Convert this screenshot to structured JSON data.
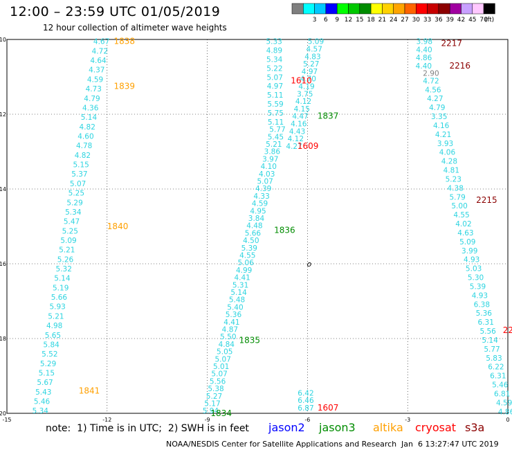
{
  "header": {
    "title": "12:00 – 23:59 UTC 01/05/2019",
    "subtitle": "12 hour collection of altimeter wave heights"
  },
  "colorbar": {
    "unit_label": "(ft)",
    "segments": [
      {
        "color": "#7f7f7f",
        "label": ""
      },
      {
        "color": "#00ffff",
        "label": "3"
      },
      {
        "color": "#00c8ff",
        "label": "6"
      },
      {
        "color": "#0000ff",
        "label": "9"
      },
      {
        "color": "#00ff00",
        "label": "12"
      },
      {
        "color": "#00c800",
        "label": "15"
      },
      {
        "color": "#008c00",
        "label": "18"
      },
      {
        "color": "#ffff00",
        "label": "21"
      },
      {
        "color": "#ffd200",
        "label": "24"
      },
      {
        "color": "#ffa500",
        "label": "27"
      },
      {
        "color": "#ff6400",
        "label": "30"
      },
      {
        "color": "#ff0000",
        "label": "33"
      },
      {
        "color": "#c80000",
        "label": "36"
      },
      {
        "color": "#8b0000",
        "label": "39"
      },
      {
        "color": "#a000a0",
        "label": "42"
      },
      {
        "color": "#c8a0ff",
        "label": "45"
      },
      {
        "color": "#ffc8ff",
        "label": "70"
      },
      {
        "color": "#000000",
        "label": ""
      }
    ]
  },
  "map": {
    "lon_range": [
      -15,
      0
    ],
    "lat_range": [
      -20,
      -10
    ],
    "x_ticks": [
      "-15",
      "-12",
      "-9",
      "-6",
      "-3",
      "0"
    ],
    "y_ticks": [
      "-10",
      "-12",
      "-14",
      "-16",
      "-18",
      "-20"
    ],
    "colors": {
      "cyan": "#2dd4e0",
      "green": "#008c00",
      "orange": "#ffa000",
      "red": "#ff0000",
      "darkred": "#8b0000",
      "gray": "#808080"
    },
    "track_labels": [
      {
        "text": "1838",
        "lon": -11.8,
        "lat": -10.05,
        "color": "orange"
      },
      {
        "text": "1839",
        "lon": -11.8,
        "lat": -11.25,
        "color": "orange"
      },
      {
        "text": "1840",
        "lon": -12.0,
        "lat": -15.0,
        "color": "orange"
      },
      {
        "text": "1841",
        "lon": -12.85,
        "lat": -19.4,
        "color": "orange"
      },
      {
        "text": "1610",
        "lon": -6.5,
        "lat": -11.1,
        "color": "red"
      },
      {
        "text": "1609",
        "lon": -6.3,
        "lat": -12.85,
        "color": "red"
      },
      {
        "text": "1607",
        "lon": -5.7,
        "lat": -19.85,
        "color": "red"
      },
      {
        "text": "1837",
        "lon": -5.7,
        "lat": -12.05,
        "color": "green"
      },
      {
        "text": "1836",
        "lon": -7.0,
        "lat": -15.1,
        "color": "green"
      },
      {
        "text": "1835",
        "lon": -8.05,
        "lat": -18.05,
        "color": "green"
      },
      {
        "text": "1834",
        "lon": -8.9,
        "lat": -20.0,
        "color": "green"
      },
      {
        "text": "2217",
        "lon": -2.0,
        "lat": -10.1,
        "color": "darkred"
      },
      {
        "text": "2216",
        "lon": -1.75,
        "lat": -10.7,
        "color": "darkred"
      },
      {
        "text": "2215",
        "lon": -0.95,
        "lat": -14.3,
        "color": "darkred"
      },
      {
        "text": "22",
        "lon": -0.15,
        "lat": -17.78,
        "color": "red"
      }
    ],
    "tracks": [
      {
        "color": "cyan",
        "lon_start": -12.17,
        "lat_start": -10.05,
        "lon_end": -14.0,
        "lat_end": -19.93,
        "values": [
          "4.67",
          "4.72",
          "4.64",
          "4.37",
          "4.59",
          "4.73",
          "4.79",
          "4.36",
          "5.14",
          "4.82",
          "4.60",
          "4.78",
          "4.82",
          "5.15",
          "5.37",
          "5.07",
          "5.25",
          "5.29",
          "5.34",
          "5.47",
          "5.25",
          "5.09",
          "5.21",
          "5.26",
          "5.32",
          "5.14",
          "5.19",
          "5.66",
          "5.93",
          "5.21",
          "4.98",
          "5.65",
          "5.84",
          "5.52",
          "5.29",
          "5.15",
          "5.67",
          "5.43",
          "5.46",
          "5.34"
        ]
      },
      {
        "color": "cyan",
        "lon_start": -7.0,
        "lat_start": -10.05,
        "lon_end": -6.95,
        "lat_end": -12.2,
        "values": [
          "5.33",
          "4.89",
          "5.34",
          "5.22",
          "5.07",
          "4.97",
          "5.11",
          "5.59",
          "5.75",
          "5.11"
        ]
      },
      {
        "color": "cyan",
        "lon_start": -6.9,
        "lat_start": -12.4,
        "lon_end": -8.9,
        "lat_end": -19.93,
        "values": [
          "5.77",
          "5.45",
          "5.21",
          "3.86",
          "3.97",
          "4.10",
          "4.03",
          "5.07",
          "4.39",
          "4.33",
          "4.59",
          "4.95",
          "3.84",
          "4.48",
          "5.66",
          "4.50",
          "5.39",
          "4.55",
          "5.06",
          "4.99",
          "4.41",
          "5.31",
          "5.14",
          "5.48",
          "5.40",
          "5.36",
          "4.41",
          "4.87",
          "5.50",
          "4.84",
          "5.05",
          "5.07",
          "5.01",
          "5.07",
          "5.56",
          "5.38",
          "5.27",
          "5.17",
          "5.94"
        ]
      },
      {
        "color": "cyan",
        "lon_start": -5.75,
        "lat_start": -10.05,
        "lon_end": -6.4,
        "lat_end": -12.85,
        "values": [
          "5.09",
          "4.57",
          "4.83",
          "5.27",
          "4.97",
          "4.70",
          "4.19",
          "3.75",
          "4.12",
          "4.15",
          "4.47",
          "4.16",
          "4.43",
          "4.12",
          "4.27"
        ]
      },
      {
        "color": "cyan",
        "lon_start": -6.05,
        "lat_start": -19.45,
        "lon_end": -6.05,
        "lat_end": -19.85,
        "values": [
          "6.42",
          "6.46",
          "6.87"
        ]
      },
      {
        "color": "cyan",
        "lon_start": -2.5,
        "lat_start": -10.05,
        "lon_end": -2.52,
        "lat_end": -10.7,
        "values": [
          "3.98",
          "4.40",
          "4.86",
          "4.40"
        ]
      },
      {
        "color": "gray",
        "lon_start": -2.3,
        "lat_start": -10.9,
        "lon_end": -2.3,
        "lat_end": -10.9,
        "values": [
          "2.90"
        ]
      },
      {
        "color": "cyan",
        "lon_start": -2.3,
        "lat_start": -11.1,
        "lon_end": -0.05,
        "lat_end": -19.95,
        "values": [
          "4.72",
          "4.56",
          "4.27",
          "4.79",
          "3.35",
          "4.16",
          "4.21",
          "3.93",
          "4.06",
          "4.28",
          "4.81",
          "5.23",
          "4.38",
          "5.79",
          "5.00",
          "4.55",
          "4.02",
          "4.63",
          "5.09",
          "3.99",
          "4.93",
          "5.03",
          "5.30",
          "5.39",
          "4.93",
          "6.38",
          "5.36",
          "6.31",
          "5.56",
          "5.14",
          "5.77",
          "5.83",
          "6.22",
          "6.31",
          "5.46",
          "6.81",
          "4.59",
          "4.86"
        ]
      }
    ],
    "marker": {
      "text": "o",
      "lon": -5.95,
      "lat": -16.0
    }
  },
  "note": {
    "text": "note:  1) Time is in UTC;  2) SWH is in feet",
    "satellites": [
      {
        "name": "jason2",
        "color": "#0000ff"
      },
      {
        "name": "jason3",
        "color": "#008c00"
      },
      {
        "name": "altika",
        "color": "#ffa000"
      },
      {
        "name": "cryosat",
        "color": "#ff0000"
      },
      {
        "name": "s3a",
        "color": "#8b0000"
      }
    ]
  },
  "footer": {
    "credit": "NOAA/NESDIS Center for Satellite Applications and Research",
    "timestamp": "Jan  6 13:27:47 UTC 2019"
  }
}
